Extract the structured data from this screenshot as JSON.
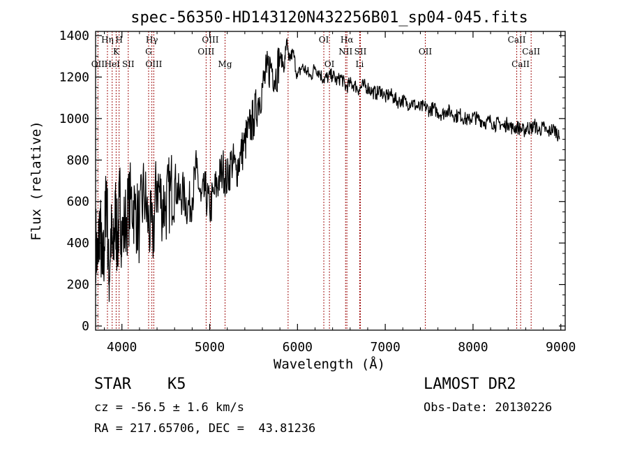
{
  "chart_data": {
    "type": "line",
    "title": "spec-56350-HD143120N432256B01_sp04-045.fits",
    "xlabel": "Wavelength (Å)",
    "ylabel": "Flux (relative)",
    "xlim": [
      3700,
      9050
    ],
    "ylim": [
      -20,
      1420
    ],
    "xticks": [
      4000,
      5000,
      6000,
      7000,
      8000,
      9000
    ],
    "yticks": [
      0,
      200,
      400,
      600,
      800,
      1000,
      1200,
      1400
    ],
    "grid": false,
    "series": [
      {
        "color": "#000000",
        "x": [
          3700,
          3725,
          3750,
          3775,
          3800,
          3825,
          3850,
          3875,
          3900,
          3925,
          3950,
          3975,
          4000,
          4050,
          4100,
          4150,
          4200,
          4250,
          4300,
          4350,
          4400,
          4450,
          4500,
          4550,
          4600,
          4650,
          4700,
          4750,
          4800,
          4850,
          4900,
          4950,
          5000,
          5050,
          5100,
          5150,
          5200,
          5250,
          5300,
          5350,
          5400,
          5450,
          5500,
          5550,
          5600,
          5650,
          5700,
          5750,
          5800,
          5850,
          5875,
          5900,
          5950,
          6000,
          6050,
          6100,
          6150,
          6200,
          6250,
          6300,
          6350,
          6400,
          6450,
          6500,
          6550,
          6600,
          6650,
          6700,
          6750,
          6800,
          6850,
          6900,
          6950,
          7000,
          7050,
          7100,
          7150,
          7200,
          7250,
          7300,
          7350,
          7400,
          7450,
          7500,
          7550,
          7600,
          7650,
          7700,
          7750,
          7800,
          7850,
          7900,
          7950,
          8000,
          8050,
          8100,
          8150,
          8200,
          8250,
          8300,
          8350,
          8400,
          8450,
          8500,
          8540,
          8580,
          8620,
          8660,
          8700,
          8750,
          8800,
          8850,
          8900,
          8950,
          8985
        ],
        "y": [
          420,
          300,
          520,
          250,
          380,
          700,
          200,
          450,
          320,
          560,
          380,
          620,
          420,
          520,
          610,
          560,
          480,
          650,
          500,
          420,
          700,
          600,
          580,
          650,
          700,
          620,
          640,
          570,
          620,
          760,
          600,
          650,
          560,
          640,
          700,
          760,
          700,
          800,
          750,
          820,
          880,
          950,
          1000,
          1080,
          1150,
          1220,
          1260,
          1200,
          1300,
          1250,
          1380,
          1280,
          1320,
          1200,
          1250,
          1230,
          1200,
          1250,
          1220,
          1190,
          1200,
          1210,
          1180,
          1200,
          1150,
          1170,
          1160,
          1140,
          1160,
          1150,
          1130,
          1120,
          1140,
          1100,
          1120,
          1100,
          1080,
          1090,
          1070,
          1080,
          1060,
          1050,
          1060,
          1040,
          1050,
          1030,
          1020,
          1040,
          1030,
          1010,
          1020,
          1000,
          990,
          1010,
          1000,
          990,
          980,
          990,
          970,
          980,
          960,
          980,
          950,
          960,
          950,
          940,
          960,
          950,
          970,
          940,
          960,
          930,
          950,
          940,
          900
        ]
      }
    ],
    "lines": [
      {
        "x": 3727,
        "label": "OII",
        "row": 2
      },
      {
        "x": 3835,
        "label": "Hη",
        "row": 0
      },
      {
        "x": 3889,
        "label": "HeI",
        "row": 2
      },
      {
        "x": 3934,
        "label": "K",
        "row": 1
      },
      {
        "x": 3968,
        "label": "H",
        "row": 0
      },
      {
        "x": 4072,
        "label": "SII",
        "row": 2
      },
      {
        "x": 4304,
        "label": "G",
        "row": 1
      },
      {
        "x": 4341,
        "label": "Hγ",
        "row": 0
      },
      {
        "x": 4363,
        "label": "OIII",
        "row": 2
      },
      {
        "x": 4959,
        "label": "OIII",
        "row": 1
      },
      {
        "x": 5007,
        "label": "OIII",
        "row": 0
      },
      {
        "x": 5175,
        "label": "Mg",
        "row": 2
      },
      {
        "x": 5893,
        "label": "",
        "row": 0
      },
      {
        "x": 6300,
        "label": "OI",
        "row": 0
      },
      {
        "x": 6364,
        "label": "OI",
        "row": 2
      },
      {
        "x": 6548,
        "label": "NII",
        "row": 1
      },
      {
        "x": 6563,
        "label": "Hα",
        "row": 0
      },
      {
        "x": 6708,
        "label": "Li",
        "row": 2
      },
      {
        "x": 6717,
        "label": "SII",
        "row": 1
      },
      {
        "x": 7456,
        "label": "OII",
        "row": 1
      },
      {
        "x": 8498,
        "label": "CaII",
        "row": 0
      },
      {
        "x": 8542,
        "label": "CaII",
        "row": 2
      },
      {
        "x": 8662,
        "label": "CaII",
        "row": 1
      }
    ]
  },
  "info": {
    "class_label": "STAR",
    "subclass": "K5",
    "survey": "LAMOST DR2",
    "cz": "cz = -56.5 ± 1.6 km/s",
    "obs_date": "Obs-Date: 20130226",
    "coords": "RA = 217.65706, DEC =  43.81236"
  }
}
